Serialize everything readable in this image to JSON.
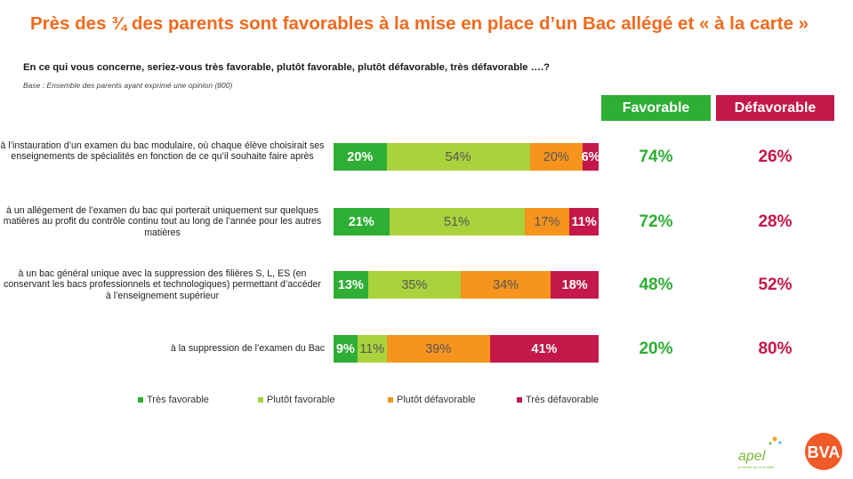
{
  "header": {
    "title": "Près des ¾ des parents sont favorables à la mise en place d’un Bac allégé et « à la carte »",
    "question": "En ce qui vous concerne, seriez-vous très favorable, plutôt favorable, plutôt défavorable, très défavorable ….?",
    "base": "Base : Ensemble des parents ayant exprimé une opinion (800)"
  },
  "columns": {
    "favorable": "Favorable",
    "defavorable": "Défavorable"
  },
  "logos": {
    "apel": "apel",
    "apel_tagline": "la famille de la réussite",
    "bva": "BVA"
  },
  "chart_data": {
    "type": "bar",
    "orientation": "horizontal-stacked-100",
    "categories": [
      "à l’instauration d’un examen du bac modulaire, où chaque élève choisirait ses enseignements de spécialités en fonction de ce qu’il souhaite faire après",
      "à un allégement de l’examen du bac qui porterait uniquement sur quelques matières au profit du contrôle continu tout au long de l’année pour les autres matières",
      "à un bac général unique avec la suppression des filières S, L, ES (en conservant les bacs professionnels et technologiques) permettant d’accéder à l’enseignement supérieur",
      "à la suppression de l’examen du Bac"
    ],
    "series": [
      {
        "name": "Très favorable",
        "color": "#2eae34",
        "values": [
          20,
          21,
          13,
          9
        ],
        "labels": [
          "20%",
          "21%",
          "13%",
          "9%"
        ]
      },
      {
        "name": "Plutôt favorable",
        "color": "#a9d33c",
        "values": [
          54,
          51,
          35,
          11
        ],
        "labels": [
          "54%",
          "51%",
          "35%",
          "11%"
        ]
      },
      {
        "name": "Plutôt défavorable",
        "color": "#f7941d",
        "values": [
          20,
          17,
          34,
          39
        ],
        "labels": [
          "20%",
          "17%",
          "34%",
          "39%"
        ]
      },
      {
        "name": "Très défavorable",
        "color": "#c4174a",
        "values": [
          6,
          11,
          18,
          41
        ],
        "labels": [
          "6%",
          "11%",
          "18%",
          "41%"
        ]
      }
    ],
    "totals": {
      "favorable": [
        "74%",
        "72%",
        "48%",
        "20%"
      ],
      "defavorable": [
        "26%",
        "28%",
        "52%",
        "80%"
      ]
    },
    "legend": "bottom",
    "grid": false
  }
}
